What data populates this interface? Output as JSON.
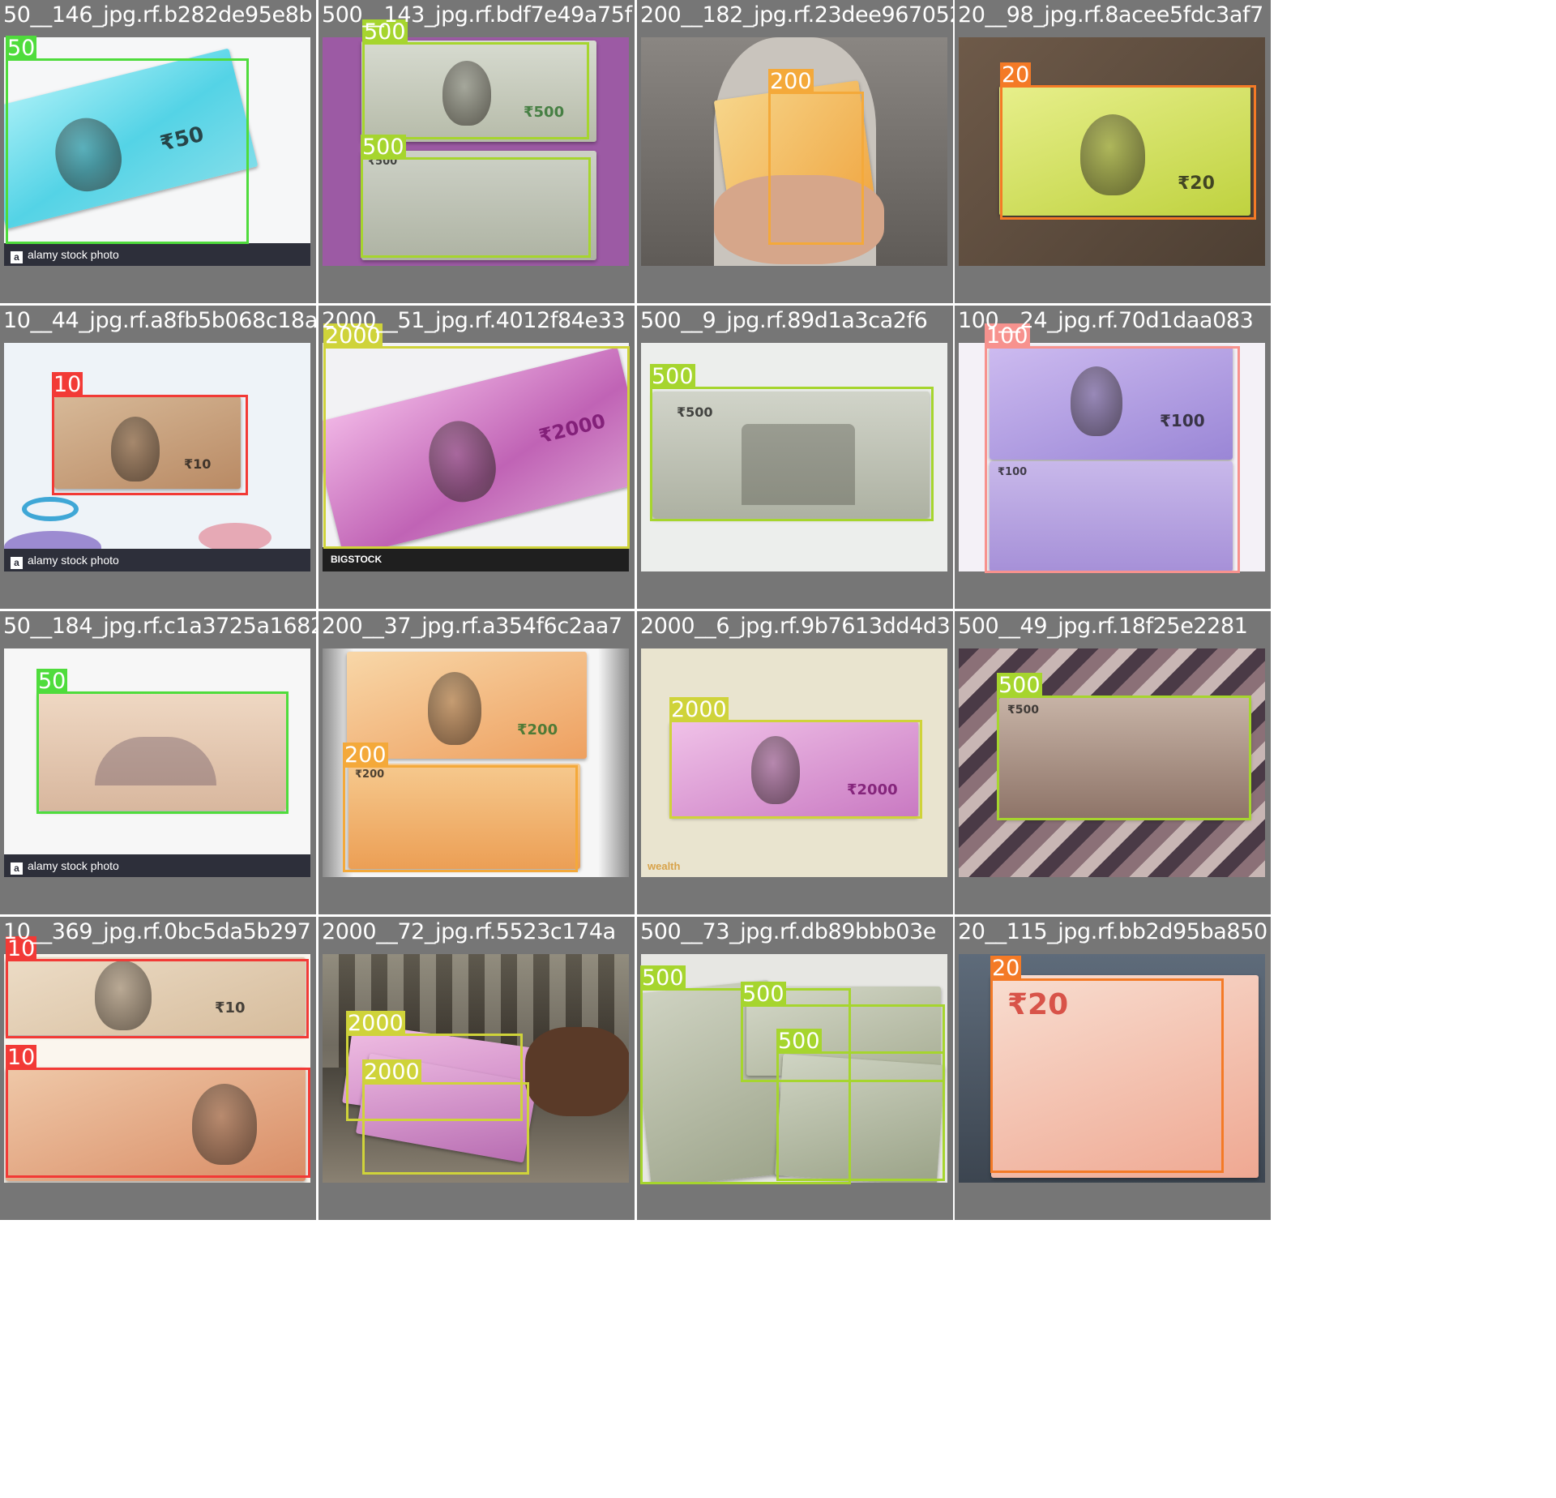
{
  "class_colors": {
    "10": "#f23a36",
    "20": "#f47a26",
    "50": "#4fdc3c",
    "100": "#f7928e",
    "200": "#f4a93a",
    "500": "#a6d52e",
    "2000": "#cfd33a"
  },
  "tiles": [
    {
      "filename": "50__146_jpg.rf.b282de95e8b",
      "watermark": "alamy stock photo",
      "boxes": [
        {
          "label": "50"
        }
      ]
    },
    {
      "filename": "500__143_jpg.rf.bdf7e49a75f",
      "watermark": "",
      "boxes": [
        {
          "label": "500"
        },
        {
          "label": "500"
        }
      ]
    },
    {
      "filename": "200__182_jpg.rf.23dee967052",
      "watermark": "",
      "boxes": [
        {
          "label": "200"
        }
      ]
    },
    {
      "filename": "20__98_jpg.rf.8acee5fdc3af7",
      "watermark": "",
      "boxes": [
        {
          "label": "20"
        }
      ]
    },
    {
      "filename": "10__44_jpg.rf.a8fb5b068c18a",
      "watermark": "alamy stock photo",
      "boxes": [
        {
          "label": "10"
        }
      ]
    },
    {
      "filename": "2000__51_jpg.rf.4012f84e33",
      "watermark": "BIGSTOCK",
      "boxes": [
        {
          "label": "2000"
        }
      ]
    },
    {
      "filename": "500__9_jpg.rf.89d1a3ca2f6",
      "watermark": "",
      "boxes": [
        {
          "label": "500"
        }
      ]
    },
    {
      "filename": "100__24_jpg.rf.70d1daa083",
      "watermark": "",
      "boxes": [
        {
          "label": "100"
        }
      ]
    },
    {
      "filename": "50__184_jpg.rf.c1a3725a1682",
      "watermark": "alamy stock photo",
      "boxes": [
        {
          "label": "50"
        }
      ]
    },
    {
      "filename": "200__37_jpg.rf.a354f6c2aa7",
      "watermark": "",
      "boxes": [
        {
          "label": "200"
        }
      ]
    },
    {
      "filename": "2000__6_jpg.rf.9b7613dd4d3",
      "watermark": "wealth",
      "boxes": [
        {
          "label": "2000"
        }
      ]
    },
    {
      "filename": "500__49_jpg.rf.18f25e2281",
      "watermark": "",
      "boxes": [
        {
          "label": "500"
        }
      ]
    },
    {
      "filename": "10__369_jpg.rf.0bc5da5b297",
      "watermark": "",
      "boxes": [
        {
          "label": "10"
        },
        {
          "label": "10"
        }
      ]
    },
    {
      "filename": "2000__72_jpg.rf.5523c174a",
      "watermark": "",
      "boxes": [
        {
          "label": "2000"
        },
        {
          "label": "2000"
        }
      ]
    },
    {
      "filename": "500__73_jpg.rf.db89bbb03e",
      "watermark": "",
      "boxes": [
        {
          "label": "500"
        },
        {
          "label": "500"
        },
        {
          "label": "500"
        }
      ]
    },
    {
      "filename": "20__115_jpg.rf.bb2d95ba850",
      "watermark": "",
      "boxes": [
        {
          "label": "20"
        }
      ]
    }
  ]
}
